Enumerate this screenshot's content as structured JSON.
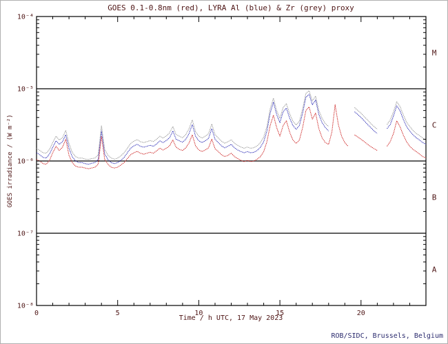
{
  "page": {
    "footer": "ROB/SIDC, Brussels, Belgium"
  },
  "colors": {
    "text": "#4d1414",
    "footer_text": "#2b2b6e",
    "frame": "#000000",
    "red_series": "#cc2020",
    "blue_series": "#2828b4",
    "grey_series": "#969696"
  },
  "chart_data": {
    "type": "line",
    "title": "GOES 0.1-0.8nm (red), LYRA Al (blue) & Zr (grey) proxy",
    "xlabel": "Time / h UTC, 17 May 2023",
    "ylabel": "GOES irradiance / (W m⁻²)",
    "x_range": [
      0,
      24
    ],
    "x_ticks_major": [
      0,
      5,
      10,
      15,
      20
    ],
    "x_minor_step": 1,
    "y_scale": "log",
    "y_range": [
      1e-08,
      0.0001
    ],
    "y_ticks": [
      {
        "value": 0.0001,
        "label": "10⁻⁴"
      },
      {
        "value": 1e-05,
        "label": "10⁻⁵"
      },
      {
        "value": 1e-06,
        "label": "10⁻⁶"
      },
      {
        "value": 1e-07,
        "label": "10⁻⁷"
      },
      {
        "value": 1e-08,
        "label": "10⁻⁸"
      }
    ],
    "class_boundaries": [
      1e-05,
      1e-06,
      1e-07
    ],
    "flare_classes": [
      {
        "label": "M",
        "value": 3.16e-05
      },
      {
        "label": "C",
        "value": 3.16e-06
      },
      {
        "label": "B",
        "value": 3.16e-07
      },
      {
        "label": "A",
        "value": 3.16e-08
      }
    ],
    "grid": false,
    "legend": "encoded in title",
    "unit": "W m^-2",
    "value_scale": 1e-06,
    "x": [
      0,
      0.2,
      0.4,
      0.6,
      0.8,
      1,
      1.2,
      1.4,
      1.6,
      1.8,
      2,
      2.2,
      2.4,
      2.6,
      2.8,
      3,
      3.2,
      3.4,
      3.6,
      3.8,
      4,
      4.2,
      4.4,
      4.6,
      4.8,
      5,
      5.2,
      5.4,
      5.6,
      5.8,
      6,
      6.2,
      6.4,
      6.6,
      6.8,
      7,
      7.2,
      7.4,
      7.6,
      7.8,
      8,
      8.2,
      8.4,
      8.6,
      8.8,
      9,
      9.2,
      9.4,
      9.6,
      9.8,
      10,
      10.2,
      10.4,
      10.6,
      10.8,
      11,
      11.2,
      11.4,
      11.6,
      11.8,
      12,
      12.2,
      12.4,
      12.6,
      12.8,
      13,
      13.2,
      13.4,
      13.6,
      13.8,
      14,
      14.2,
      14.4,
      14.6,
      14.8,
      15,
      15.2,
      15.4,
      15.6,
      15.8,
      16,
      16.2,
      16.4,
      16.6,
      16.8,
      17,
      17.2,
      17.4,
      17.6,
      17.8,
      18,
      18.2,
      18.4,
      18.6,
      18.8,
      19,
      19.2,
      19.4,
      19.6,
      19.8,
      20,
      20.2,
      20.4,
      20.6,
      20.8,
      21,
      21.2,
      21.4,
      21.6,
      21.8,
      22,
      22.2,
      22.4,
      22.6,
      22.8,
      23,
      23.2,
      23.4,
      23.6,
      23.8,
      24
    ],
    "series": [
      {
        "name": "LYRA Zr proxy",
        "color": "#969696",
        "values": [
          1.5,
          1.4,
          1.3,
          1.28,
          1.45,
          1.8,
          2.2,
          1.95,
          2.1,
          2.65,
          1.75,
          1.32,
          1.15,
          1.1,
          1.1,
          1.06,
          1.05,
          1.08,
          1.1,
          1.22,
          3.1,
          1.45,
          1.2,
          1.1,
          1.06,
          1.1,
          1.18,
          1.3,
          1.5,
          1.75,
          1.88,
          1.98,
          1.85,
          1.8,
          1.85,
          1.92,
          1.86,
          2.0,
          2.2,
          2.08,
          2.22,
          2.45,
          3.0,
          2.32,
          2.2,
          2.1,
          2.32,
          2.8,
          3.7,
          2.55,
          2.2,
          2.08,
          2.2,
          2.38,
          3.25,
          2.32,
          2.08,
          1.88,
          1.76,
          1.85,
          1.97,
          1.76,
          1.65,
          1.56,
          1.5,
          1.56,
          1.5,
          1.53,
          1.62,
          1.8,
          2.15,
          3.0,
          5.3,
          7.4,
          5.0,
          3.9,
          5.5,
          6.2,
          4.5,
          3.55,
          3.15,
          3.55,
          5.3,
          8.6,
          9.4,
          6.8,
          7.9,
          5.0,
          3.9,
          3.3,
          3.0,
          null,
          null,
          null,
          null,
          null,
          null,
          null,
          5.5,
          5.0,
          4.6,
          4.1,
          3.7,
          3.3,
          3.0,
          2.75,
          null,
          null,
          3.2,
          3.7,
          4.8,
          6.6,
          5.7,
          4.4,
          3.45,
          3.0,
          2.65,
          2.4,
          2.25,
          2.08,
          1.95
        ]
      },
      {
        "name": "LYRA Al proxy",
        "color": "#2828b4",
        "values": [
          1.3,
          1.22,
          1.12,
          1.1,
          1.25,
          1.55,
          1.9,
          1.7,
          1.85,
          2.3,
          1.5,
          1.15,
          1.0,
          0.95,
          0.95,
          0.92,
          0.9,
          0.93,
          0.95,
          1.05,
          2.6,
          1.25,
          1.05,
          0.95,
          0.92,
          0.95,
          1.02,
          1.12,
          1.3,
          1.5,
          1.62,
          1.7,
          1.6,
          1.55,
          1.6,
          1.65,
          1.6,
          1.72,
          1.9,
          1.8,
          1.92,
          2.1,
          2.6,
          2.0,
          1.9,
          1.82,
          2.0,
          2.4,
          3.2,
          2.2,
          1.9,
          1.8,
          1.9,
          2.05,
          2.8,
          2.0,
          1.8,
          1.62,
          1.52,
          1.6,
          1.7,
          1.52,
          1.42,
          1.35,
          1.3,
          1.35,
          1.3,
          1.32,
          1.4,
          1.55,
          1.85,
          2.6,
          4.6,
          6.5,
          4.4,
          3.4,
          4.8,
          5.4,
          3.9,
          3.1,
          2.75,
          3.1,
          4.6,
          7.6,
          8.4,
          6.0,
          7.0,
          4.4,
          3.4,
          2.9,
          2.6,
          null,
          null,
          null,
          null,
          null,
          null,
          null,
          4.8,
          4.4,
          4.0,
          3.6,
          3.2,
          2.9,
          2.6,
          2.4,
          null,
          null,
          2.8,
          3.2,
          4.2,
          5.8,
          5.0,
          3.8,
          3.0,
          2.6,
          2.3,
          2.1,
          1.95,
          1.8,
          1.7
        ]
      },
      {
        "name": "GOES 0.1-0.8nm",
        "color": "#cc2020",
        "values": [
          1.05,
          1.0,
          0.92,
          0.9,
          1.02,
          1.3,
          1.6,
          1.4,
          1.55,
          2.0,
          1.2,
          0.95,
          0.85,
          0.82,
          0.82,
          0.8,
          0.78,
          0.8,
          0.82,
          0.9,
          2.2,
          1.05,
          0.9,
          0.82,
          0.8,
          0.82,
          0.88,
          0.95,
          1.08,
          1.22,
          1.3,
          1.36,
          1.28,
          1.24,
          1.28,
          1.32,
          1.28,
          1.38,
          1.5,
          1.42,
          1.5,
          1.62,
          1.95,
          1.55,
          1.45,
          1.4,
          1.52,
          1.78,
          2.3,
          1.62,
          1.42,
          1.35,
          1.42,
          1.52,
          2.0,
          1.48,
          1.35,
          1.22,
          1.15,
          1.2,
          1.28,
          1.15,
          1.08,
          1.02,
          0.98,
          1.02,
          0.98,
          1.0,
          1.06,
          1.15,
          1.35,
          1.85,
          3.1,
          4.3,
          2.9,
          2.2,
          3.1,
          3.6,
          2.5,
          1.95,
          1.75,
          1.95,
          2.9,
          5.0,
          5.6,
          3.8,
          4.6,
          2.8,
          2.1,
          1.8,
          1.7,
          2.5,
          6.0,
          3.2,
          2.2,
          1.8,
          1.6,
          null,
          2.3,
          2.15,
          2.0,
          1.85,
          1.7,
          1.58,
          1.48,
          1.4,
          null,
          null,
          1.6,
          1.85,
          2.4,
          3.6,
          3.0,
          2.3,
          1.85,
          1.6,
          1.45,
          1.35,
          1.25,
          1.15,
          1.1
        ]
      }
    ]
  }
}
